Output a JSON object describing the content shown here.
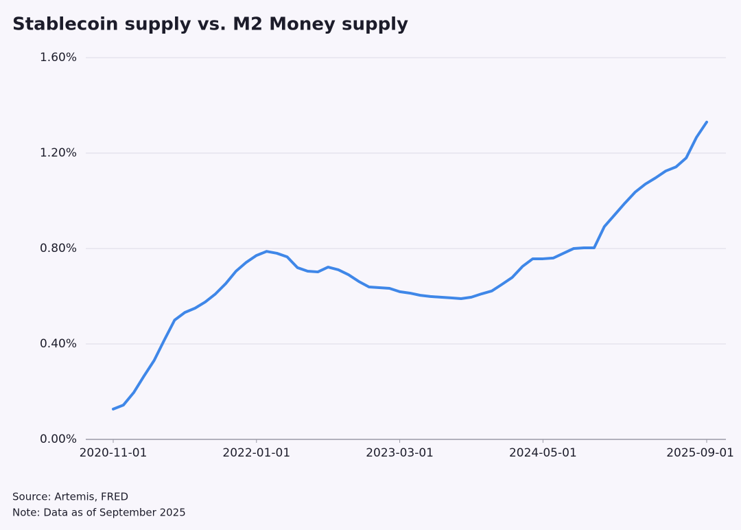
{
  "chart_data": {
    "type": "line",
    "title": "Stablecoin supply vs. M2 Money supply",
    "source": "Source: Artemis, FRED",
    "note": "Note: Data as of September 2025",
    "x": [
      "2020-11-01",
      "2020-12-01",
      "2021-01-01",
      "2021-02-01",
      "2021-03-01",
      "2021-04-01",
      "2021-05-01",
      "2021-06-01",
      "2021-07-01",
      "2021-08-01",
      "2021-09-01",
      "2021-10-01",
      "2021-11-01",
      "2021-12-01",
      "2022-01-01",
      "2022-02-01",
      "2022-03-01",
      "2022-04-01",
      "2022-05-01",
      "2022-06-01",
      "2022-07-01",
      "2022-08-01",
      "2022-09-01",
      "2022-10-01",
      "2022-11-01",
      "2022-12-01",
      "2023-01-01",
      "2023-02-01",
      "2023-03-01",
      "2023-04-01",
      "2023-05-01",
      "2023-06-01",
      "2023-07-01",
      "2023-08-01",
      "2023-09-01",
      "2023-10-01",
      "2023-11-01",
      "2023-12-01",
      "2024-01-01",
      "2024-02-01",
      "2024-03-01",
      "2024-04-01",
      "2024-05-01",
      "2024-06-01",
      "2024-07-01",
      "2024-08-01",
      "2024-09-01",
      "2024-10-01",
      "2024-11-01",
      "2024-12-01",
      "2025-01-01",
      "2025-02-01",
      "2025-03-01",
      "2025-04-01",
      "2025-05-01",
      "2025-06-01",
      "2025-07-01",
      "2025-08-01",
      "2025-09-01"
    ],
    "series": [
      {
        "name": "Stablecoin supply / M2",
        "color": "#3f87e8",
        "values": [
          0.127,
          0.144,
          0.196,
          0.265,
          0.331,
          0.417,
          0.5,
          0.532,
          0.55,
          0.576,
          0.61,
          0.653,
          0.705,
          0.742,
          0.771,
          0.788,
          0.78,
          0.765,
          0.72,
          0.705,
          0.702,
          0.722,
          0.711,
          0.69,
          0.662,
          0.639,
          0.636,
          0.633,
          0.619,
          0.613,
          0.604,
          0.599,
          0.596,
          0.593,
          0.59,
          0.596,
          0.61,
          0.622,
          0.65,
          0.679,
          0.725,
          0.757,
          0.757,
          0.76,
          0.78,
          0.8,
          0.803,
          0.803,
          0.892,
          0.941,
          0.99,
          1.036,
          1.07,
          1.096,
          1.125,
          1.142,
          1.18,
          1.266,
          1.33
        ]
      }
    ],
    "xticks": [
      "2020-11-01",
      "2022-01-01",
      "2023-03-01",
      "2024-05-01",
      "2025-09-01"
    ],
    "ylim": [
      0,
      1.6
    ],
    "yticks": [
      {
        "value": 0,
        "label": "0.00%"
      },
      {
        "value": 0.4,
        "label": "0.40%"
      },
      {
        "value": 0.8,
        "label": "0.80%"
      },
      {
        "value": 1.2,
        "label": "1.20%"
      },
      {
        "value": 1.6,
        "label": "1.60%"
      }
    ],
    "grid": true
  }
}
